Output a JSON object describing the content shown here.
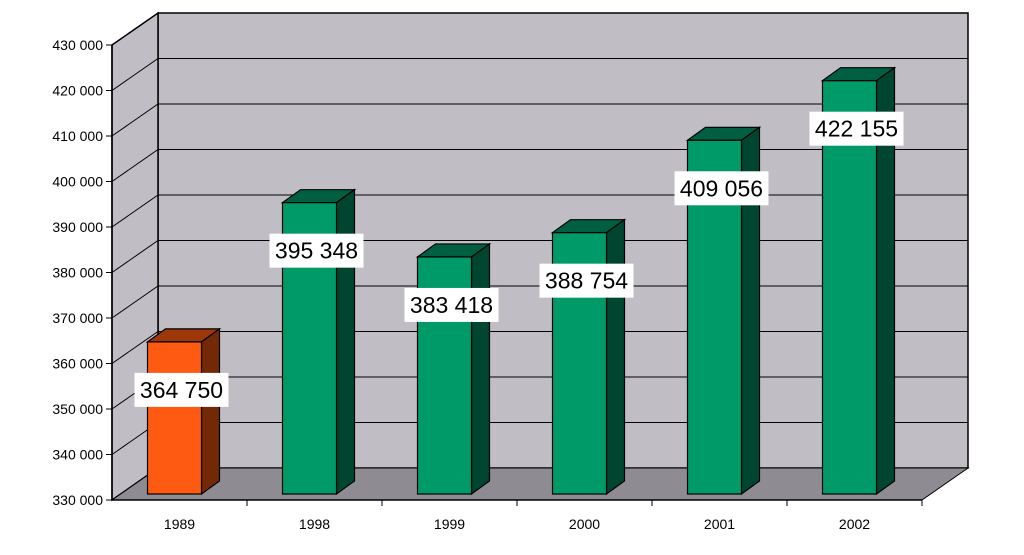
{
  "chart_data": {
    "type": "bar",
    "style": "3d",
    "categories": [
      "1989",
      "1998",
      "1999",
      "2000",
      "2001",
      "2002"
    ],
    "values": [
      364750,
      395348,
      383418,
      388754,
      409056,
      422155
    ],
    "data_labels": [
      "364 750",
      "395 348",
      "383 418",
      "388 754",
      "409 056",
      "422 155"
    ],
    "bar_colors": [
      "#ff5a12",
      "#009a68",
      "#009a68",
      "#009a68",
      "#009a68",
      "#009a68"
    ],
    "ylim": [
      330000,
      430000
    ],
    "yticks": [
      330000,
      340000,
      350000,
      360000,
      370000,
      380000,
      390000,
      400000,
      410000,
      420000,
      430000
    ],
    "ytick_labels": [
      "330 000",
      "340 000",
      "350 000",
      "360 000",
      "370 000",
      "380 000",
      "390 000",
      "400 000",
      "410 000",
      "420 000",
      "430 000"
    ],
    "title": "",
    "xlabel": "",
    "ylabel": "",
    "grid": true,
    "legend": "none",
    "colors": {
      "back_wall": "#c0bec4",
      "side_wall": "#c0bec4",
      "floor": "#8e8c92",
      "grid": "#000000"
    }
  }
}
